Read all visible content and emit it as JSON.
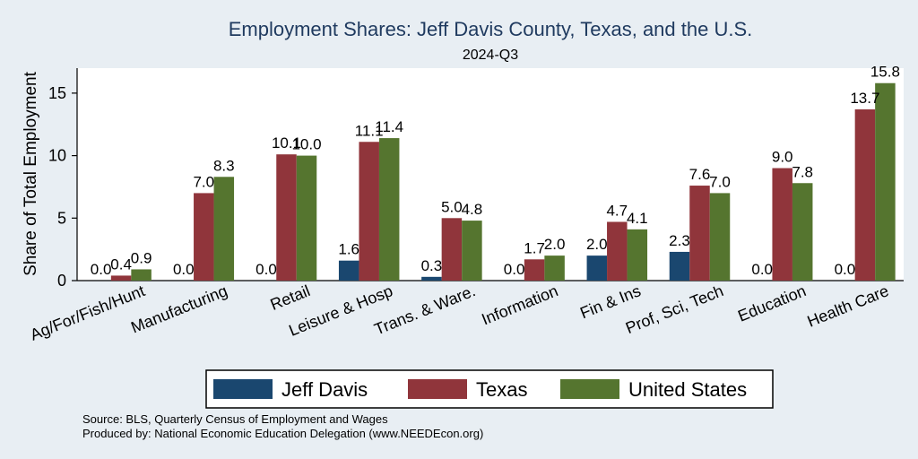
{
  "chart_data": {
    "type": "bar",
    "title": "Employment Shares: Jeff Davis County, Texas, and the U.S.",
    "subtitle": "2024-Q3",
    "xlabel": "",
    "ylabel": "Share of Total Employment",
    "ylim": [
      0,
      17
    ],
    "yticks": [
      0,
      5,
      10,
      15
    ],
    "grid": false,
    "legend_position": "bottom",
    "categories": [
      "Ag/For/Fish/Hunt",
      "Manufacturing",
      "Retail",
      "Leisure & Hosp",
      "Trans. & Ware.",
      "Information",
      "Fin & Ins",
      "Prof, Sci, Tech",
      "Education",
      "Health Care"
    ],
    "series": [
      {
        "name": "Jeff Davis",
        "color": "#1a476f",
        "values": [
          0.0,
          0.0,
          0.0,
          1.6,
          0.3,
          0.0,
          2.0,
          2.3,
          0.0,
          0.0
        ],
        "labels": [
          "0.0",
          "0.0",
          "0.0",
          "1.6",
          "0.3",
          "0.0",
          "2.0",
          "2.3",
          "0.0",
          "0.0"
        ]
      },
      {
        "name": "Texas",
        "color": "#90353b",
        "values": [
          0.4,
          7.0,
          10.1,
          11.1,
          5.0,
          1.7,
          4.7,
          7.6,
          9.0,
          13.7
        ],
        "labels": [
          "0.4",
          "7.0",
          "10.1",
          "11.1",
          "5.0",
          "1.7",
          "4.7",
          "7.6",
          "9.0",
          "13.7"
        ]
      },
      {
        "name": "United States",
        "color": "#55752f",
        "values": [
          0.9,
          8.3,
          10.0,
          11.4,
          4.8,
          2.0,
          4.1,
          7.0,
          7.8,
          15.8
        ],
        "labels": [
          "0.9",
          "8.3",
          "10.0",
          "11.4",
          "4.8",
          "2.0",
          "4.1",
          "7.0",
          "7.8",
          "15.8"
        ]
      }
    ],
    "notes": [
      "Source: BLS, Quarterly Census of Employment and Wages",
      "Produced by: National Economic Education Delegation (www.NEEDEcon.org)"
    ]
  }
}
